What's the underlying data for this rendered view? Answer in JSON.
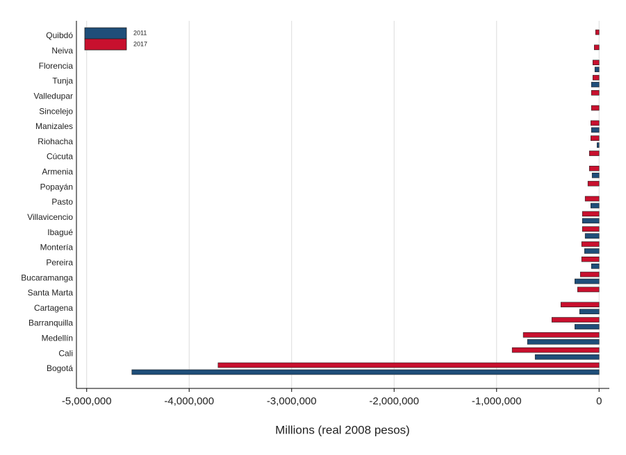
{
  "chart_data": {
    "type": "barh",
    "categories": [
      "Quibdó",
      "Neiva",
      "Florencia",
      "Tunja",
      "Valledupar",
      "Sincelejo",
      "Manizales",
      "Riohacha",
      "Cúcuta",
      "Armenia",
      "Popayán",
      "Pasto",
      "Villavicencio",
      "Ibagué",
      "Montería",
      "Pereira",
      "Bucaramanga",
      "Santa Marta",
      "Cartagena",
      "Barranquilla",
      "Medellín",
      "Cali",
      "Bogotá"
    ],
    "series": [
      {
        "name": "2011",
        "color": "#1f4e79",
        "values": [
          null,
          null,
          -41000,
          -75000,
          null,
          null,
          -75000,
          -20000,
          null,
          -68000,
          null,
          -81000,
          -163000,
          -136000,
          -142000,
          -75000,
          -237000,
          null,
          -190000,
          -237000,
          -699000,
          -624000,
          -4559000
        ]
      },
      {
        "name": "2017",
        "color": "#c8102e",
        "values": [
          -34000,
          -47000,
          -61000,
          -61000,
          -75000,
          -75000,
          -81000,
          -81000,
          -95000,
          -95000,
          -109000,
          -136000,
          -163000,
          -163000,
          -170000,
          -170000,
          -183000,
          -210000,
          -373000,
          -461000,
          -740000,
          -848000,
          -3718000
        ]
      }
    ],
    "xlabel": "Millions (real 2008 pesos)",
    "xlim": [
      -5100000,
      100000
    ],
    "xticks": [
      {
        "value": -5000000,
        "label": "-5,000,000"
      },
      {
        "value": -4000000,
        "label": "-4,000,000"
      },
      {
        "value": -3000000,
        "label": "-3,000,000"
      },
      {
        "value": -2000000,
        "label": "-2,000,000"
      },
      {
        "value": -1000000,
        "label": "-1,000,000"
      },
      0
    ],
    "grid": true,
    "legend": "upper left"
  }
}
